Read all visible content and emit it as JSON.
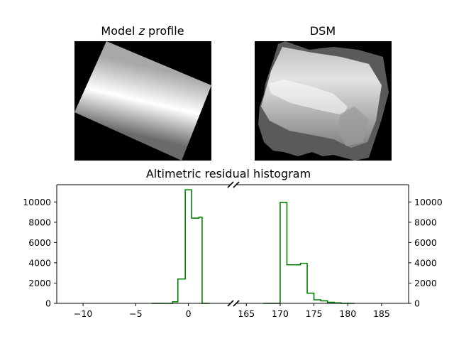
{
  "images": [
    {
      "title_prefix": "Model ",
      "title_var": "z",
      "title_suffix": " profile"
    },
    {
      "title": "DSM"
    }
  ],
  "chart_data": {
    "type": "histogram",
    "title": "Altimetric residual histogram",
    "series_color": "#008000",
    "x_left_range": [
      -12.5,
      4
    ],
    "x_right_range": [
      163.5,
      189
    ],
    "x_left_ticks": [
      {
        "v": -10,
        "label": "−10"
      },
      {
        "v": -5,
        "label": "−5"
      },
      {
        "v": 0,
        "label": "0"
      }
    ],
    "x_right_ticks": [
      {
        "v": 165,
        "label": "165"
      },
      {
        "v": 170,
        "label": "170"
      },
      {
        "v": 175,
        "label": "175"
      },
      {
        "v": 180,
        "label": "180"
      },
      {
        "v": 185,
        "label": "185"
      }
    ],
    "y_range": [
      0,
      11700
    ],
    "y_ticks": [
      0,
      2000,
      4000,
      6000,
      8000,
      10000
    ],
    "left_bins": {
      "edges": [
        -3.5,
        -1.5,
        -1,
        -0.3,
        0.3,
        1,
        1.3,
        2
      ],
      "counts": [
        0,
        150,
        2400,
        11200,
        8400,
        8500,
        0
      ]
    },
    "right_bins": {
      "edges": [
        167.5,
        169.6,
        170,
        171,
        172,
        173,
        174,
        175,
        176,
        177,
        178,
        179,
        181
      ],
      "counts": [
        0,
        0,
        9950,
        3800,
        3800,
        3950,
        1000,
        350,
        250,
        100,
        50,
        0
      ]
    }
  }
}
